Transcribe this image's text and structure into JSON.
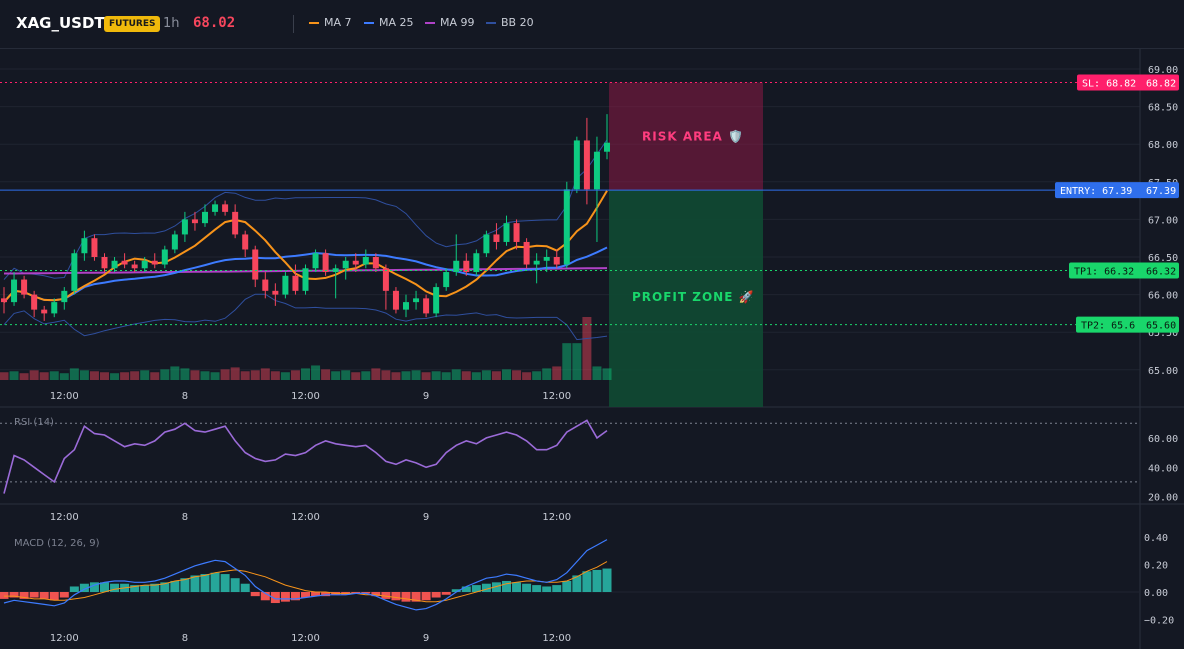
{
  "header": {
    "symbol": "XAG_USDT",
    "badge": "FUTURES",
    "timeframe": "1h",
    "last_price": "68.02",
    "legend": [
      {
        "label": "MA 7",
        "color": "#f7931a"
      },
      {
        "label": "MA 25",
        "color": "#3d7bff"
      },
      {
        "label": "MA 99",
        "color": "#b042c7"
      },
      {
        "label": "BB 20",
        "color": "#2f4f9e"
      }
    ]
  },
  "price_axis": {
    "ticks": [
      "69.00",
      "68.50",
      "68.00",
      "67.50",
      "67.00",
      "66.50",
      "66.00",
      "65.50",
      "65.00"
    ]
  },
  "time_axis": {
    "labels": [
      "12:00",
      "8",
      "12:00",
      "9",
      "12:00"
    ]
  },
  "levels": {
    "sl": {
      "tag": "SL: 68.82",
      "value": "68.82",
      "num": 68.82,
      "color": "#ff1f6b"
    },
    "entry": {
      "tag": "ENTRY: 67.39",
      "value": "67.39",
      "num": 67.39,
      "color": "#2f6fec"
    },
    "tp1": {
      "tag": "TP1: 66.32",
      "value": "66.32",
      "num": 66.32,
      "color": "#19d66b"
    },
    "tp2": {
      "tag": "TP2: 65.6",
      "value": "65.60",
      "num": 65.6,
      "color": "#19d66b"
    }
  },
  "zones": {
    "risk_label": "RISK AREA 🛡️",
    "profit_label": "PROFIT ZONE 🚀"
  },
  "rsi": {
    "title": "RSI (14)",
    "ticks": [
      "60.00",
      "40.00",
      "20.00"
    ],
    "upper": 70,
    "lower": 30
  },
  "macd": {
    "title": "MACD (12, 26, 9)",
    "ticks": [
      "0.40",
      "0.20",
      "0.00",
      "−0.20"
    ]
  },
  "colors": {
    "up": "#0ecb81",
    "down": "#f6465d",
    "bg": "#141823",
    "grid": "#1f2431"
  },
  "chart_data": {
    "type": "candlestick",
    "x_axis_labels": [
      "12:00",
      "8",
      "12:00",
      "9",
      "12:00"
    ],
    "ylim": [
      64.8,
      69.2
    ],
    "candles": [
      {
        "o": 65.95,
        "h": 66.1,
        "l": 65.75,
        "c": 65.9
      },
      {
        "o": 65.9,
        "h": 66.3,
        "l": 65.85,
        "c": 66.2
      },
      {
        "o": 66.2,
        "h": 66.25,
        "l": 65.95,
        "c": 66.0
      },
      {
        "o": 66.0,
        "h": 66.05,
        "l": 65.7,
        "c": 65.8
      },
      {
        "o": 65.8,
        "h": 65.85,
        "l": 65.65,
        "c": 65.75
      },
      {
        "o": 65.75,
        "h": 65.95,
        "l": 65.7,
        "c": 65.9
      },
      {
        "o": 65.9,
        "h": 66.1,
        "l": 65.8,
        "c": 66.05
      },
      {
        "o": 66.05,
        "h": 66.6,
        "l": 66.0,
        "c": 66.55
      },
      {
        "o": 66.55,
        "h": 66.85,
        "l": 66.45,
        "c": 66.75
      },
      {
        "o": 66.75,
        "h": 66.8,
        "l": 66.45,
        "c": 66.5
      },
      {
        "o": 66.5,
        "h": 66.55,
        "l": 66.3,
        "c": 66.35
      },
      {
        "o": 66.35,
        "h": 66.5,
        "l": 66.3,
        "c": 66.45
      },
      {
        "o": 66.45,
        "h": 66.55,
        "l": 66.35,
        "c": 66.4
      },
      {
        "o": 66.4,
        "h": 66.45,
        "l": 66.3,
        "c": 66.35
      },
      {
        "o": 66.35,
        "h": 66.5,
        "l": 66.3,
        "c": 66.45
      },
      {
        "o": 66.45,
        "h": 66.55,
        "l": 66.35,
        "c": 66.4
      },
      {
        "o": 66.4,
        "h": 66.65,
        "l": 66.35,
        "c": 66.6
      },
      {
        "o": 66.6,
        "h": 66.85,
        "l": 66.55,
        "c": 66.8
      },
      {
        "o": 66.8,
        "h": 67.1,
        "l": 66.7,
        "c": 67.0
      },
      {
        "o": 67.0,
        "h": 67.1,
        "l": 66.85,
        "c": 66.95
      },
      {
        "o": 66.95,
        "h": 67.2,
        "l": 66.9,
        "c": 67.1
      },
      {
        "o": 67.1,
        "h": 67.25,
        "l": 67.05,
        "c": 67.2
      },
      {
        "o": 67.2,
        "h": 67.25,
        "l": 67.05,
        "c": 67.1
      },
      {
        "o": 67.1,
        "h": 67.2,
        "l": 66.75,
        "c": 66.8
      },
      {
        "o": 66.8,
        "h": 66.85,
        "l": 66.5,
        "c": 66.6
      },
      {
        "o": 66.6,
        "h": 66.65,
        "l": 66.1,
        "c": 66.2
      },
      {
        "o": 66.2,
        "h": 66.3,
        "l": 65.95,
        "c": 66.05
      },
      {
        "o": 66.05,
        "h": 66.15,
        "l": 65.85,
        "c": 66.0
      },
      {
        "o": 66.0,
        "h": 66.3,
        "l": 65.95,
        "c": 66.25
      },
      {
        "o": 66.25,
        "h": 66.4,
        "l": 66.0,
        "c": 66.05
      },
      {
        "o": 66.05,
        "h": 66.4,
        "l": 66.0,
        "c": 66.35
      },
      {
        "o": 66.35,
        "h": 66.6,
        "l": 66.3,
        "c": 66.55
      },
      {
        "o": 66.55,
        "h": 66.6,
        "l": 66.25,
        "c": 66.3
      },
      {
        "o": 66.3,
        "h": 66.4,
        "l": 65.95,
        "c": 66.35
      },
      {
        "o": 66.35,
        "h": 66.5,
        "l": 66.2,
        "c": 66.45
      },
      {
        "o": 66.45,
        "h": 66.55,
        "l": 66.3,
        "c": 66.4
      },
      {
        "o": 66.4,
        "h": 66.6,
        "l": 66.35,
        "c": 66.5
      },
      {
        "o": 66.5,
        "h": 66.55,
        "l": 66.3,
        "c": 66.35
      },
      {
        "o": 66.35,
        "h": 66.4,
        "l": 65.8,
        "c": 66.05
      },
      {
        "o": 66.05,
        "h": 66.1,
        "l": 65.75,
        "c": 65.8
      },
      {
        "o": 65.8,
        "h": 66.0,
        "l": 65.7,
        "c": 65.9
      },
      {
        "o": 65.9,
        "h": 66.05,
        "l": 65.8,
        "c": 65.95
      },
      {
        "o": 65.95,
        "h": 66.0,
        "l": 65.7,
        "c": 65.75
      },
      {
        "o": 65.75,
        "h": 66.15,
        "l": 65.7,
        "c": 66.1
      },
      {
        "o": 66.1,
        "h": 66.35,
        "l": 66.05,
        "c": 66.3
      },
      {
        "o": 66.3,
        "h": 66.8,
        "l": 66.25,
        "c": 66.45
      },
      {
        "o": 66.45,
        "h": 66.55,
        "l": 66.25,
        "c": 66.3
      },
      {
        "o": 66.3,
        "h": 66.6,
        "l": 66.25,
        "c": 66.55
      },
      {
        "o": 66.55,
        "h": 66.85,
        "l": 66.5,
        "c": 66.8
      },
      {
        "o": 66.8,
        "h": 66.95,
        "l": 66.6,
        "c": 66.7
      },
      {
        "o": 66.7,
        "h": 67.05,
        "l": 66.65,
        "c": 66.95
      },
      {
        "o": 66.95,
        "h": 67.0,
        "l": 66.6,
        "c": 66.7
      },
      {
        "o": 66.7,
        "h": 66.75,
        "l": 66.35,
        "c": 66.4
      },
      {
        "o": 66.4,
        "h": 66.55,
        "l": 66.15,
        "c": 66.45
      },
      {
        "o": 66.45,
        "h": 66.6,
        "l": 66.3,
        "c": 66.5
      },
      {
        "o": 66.5,
        "h": 66.6,
        "l": 66.35,
        "c": 66.4
      },
      {
        "o": 66.4,
        "h": 67.5,
        "l": 66.35,
        "c": 67.4
      },
      {
        "o": 67.4,
        "h": 68.1,
        "l": 67.35,
        "c": 68.05
      },
      {
        "o": 68.05,
        "h": 68.35,
        "l": 67.2,
        "c": 67.4
      },
      {
        "o": 67.4,
        "h": 68.1,
        "l": 66.7,
        "c": 67.9
      },
      {
        "o": 67.9,
        "h": 68.4,
        "l": 67.8,
        "c": 68.02
      }
    ],
    "volume": [
      8,
      9,
      7,
      10,
      8,
      9,
      7,
      12,
      10,
      9,
      8,
      7,
      8,
      9,
      10,
      8,
      11,
      14,
      12,
      10,
      9,
      8,
      11,
      13,
      9,
      10,
      12,
      9,
      8,
      10,
      12,
      15,
      11,
      9,
      10,
      8,
      9,
      12,
      10,
      8,
      9,
      10,
      8,
      9,
      8,
      11,
      9,
      8,
      10,
      9,
      11,
      10,
      8,
      9,
      12,
      14,
      38,
      38,
      65,
      14,
      12
    ],
    "rsi": [
      22,
      48,
      45,
      40,
      35,
      30,
      46,
      52,
      68,
      63,
      62,
      58,
      54,
      56,
      55,
      58,
      64,
      66,
      70,
      65,
      64,
      66,
      68,
      58,
      50,
      46,
      44,
      45,
      49,
      48,
      50,
      55,
      58,
      56,
      55,
      54,
      55,
      50,
      44,
      42,
      45,
      43,
      40,
      42,
      50,
      55,
      58,
      56,
      60,
      62,
      64,
      62,
      58,
      52,
      52,
      55,
      64,
      68,
      72,
      60,
      65
    ],
    "macd_hist": [
      -0.05,
      -0.04,
      -0.05,
      -0.04,
      -0.05,
      -0.06,
      -0.04,
      0.04,
      0.06,
      0.07,
      0.07,
      0.06,
      0.06,
      0.05,
      0.05,
      0.06,
      0.07,
      0.08,
      0.1,
      0.12,
      0.13,
      0.14,
      0.13,
      0.1,
      0.06,
      -0.03,
      -0.06,
      -0.08,
      -0.07,
      -0.06,
      -0.04,
      -0.03,
      -0.03,
      -0.02,
      -0.02,
      -0.01,
      -0.01,
      -0.03,
      -0.05,
      -0.06,
      -0.07,
      -0.07,
      -0.06,
      -0.04,
      -0.02,
      0.02,
      0.04,
      0.05,
      0.06,
      0.07,
      0.08,
      0.07,
      0.06,
      0.05,
      0.04,
      0.05,
      0.08,
      0.12,
      0.15,
      0.16,
      0.17
    ],
    "macd_line": [
      -0.08,
      -0.06,
      -0.07,
      -0.08,
      -0.09,
      -0.1,
      -0.08,
      -0.02,
      0.02,
      0.05,
      0.07,
      0.08,
      0.08,
      0.07,
      0.07,
      0.08,
      0.1,
      0.13,
      0.16,
      0.19,
      0.21,
      0.23,
      0.22,
      0.17,
      0.12,
      0.04,
      -0.01,
      -0.05,
      -0.05,
      -0.05,
      -0.04,
      -0.03,
      -0.02,
      -0.02,
      -0.02,
      -0.01,
      -0.01,
      -0.03,
      -0.06,
      -0.09,
      -0.11,
      -0.13,
      -0.12,
      -0.09,
      -0.05,
      0.0,
      0.04,
      0.07,
      0.1,
      0.11,
      0.13,
      0.12,
      0.1,
      0.08,
      0.07,
      0.09,
      0.14,
      0.22,
      0.3,
      0.34,
      0.38
    ],
    "signal_line": [
      -0.03,
      -0.03,
      -0.04,
      -0.05,
      -0.05,
      -0.06,
      -0.06,
      -0.05,
      -0.04,
      -0.02,
      0.0,
      0.02,
      0.03,
      0.04,
      0.05,
      0.05,
      0.06,
      0.08,
      0.09,
      0.11,
      0.12,
      0.14,
      0.15,
      0.16,
      0.15,
      0.13,
      0.11,
      0.08,
      0.05,
      0.03,
      0.01,
      0.0,
      0.0,
      -0.01,
      -0.01,
      -0.01,
      -0.02,
      -0.02,
      -0.03,
      -0.04,
      -0.05,
      -0.06,
      -0.07,
      -0.07,
      -0.06,
      -0.04,
      -0.02,
      0.0,
      0.02,
      0.04,
      0.06,
      0.07,
      0.08,
      0.08,
      0.07,
      0.07,
      0.08,
      0.11,
      0.15,
      0.18,
      0.22
    ]
  }
}
